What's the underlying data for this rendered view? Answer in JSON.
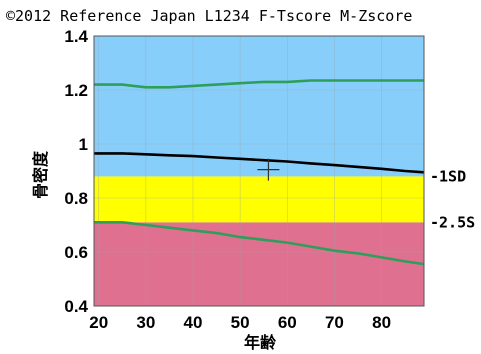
{
  "chart_data": {
    "type": "line",
    "title": "©2012 Reference Japan L1234 F-Tscore M-Zscore",
    "xlabel": "年齢",
    "ylabel": "骨密度",
    "xlim": [
      19,
      89
    ],
    "ylim": [
      0.4,
      1.4
    ],
    "x_ticks": [
      "20",
      "30",
      "40",
      "50",
      "60",
      "70",
      "80"
    ],
    "y_ticks": [
      "0.4",
      "0.6",
      "0.8",
      "1",
      "1.2",
      "1.4"
    ],
    "grid": true,
    "bands": [
      {
        "y0": 0.4,
        "y1": 0.71,
        "color": "#e0708f"
      },
      {
        "y0": 0.71,
        "y1": 0.88,
        "color": "#ffff00"
      },
      {
        "y0": 0.88,
        "y1": 1.4,
        "color": "#87cefa"
      }
    ],
    "series": [
      {
        "color": "#2e9e5b",
        "x": [
          19,
          25,
          30,
          35,
          40,
          45,
          50,
          55,
          60,
          65,
          70,
          75,
          80,
          85,
          89
        ],
        "y": [
          1.22,
          1.22,
          1.21,
          1.21,
          1.215,
          1.22,
          1.225,
          1.23,
          1.23,
          1.235,
          1.235,
          1.235,
          1.235,
          1.235,
          1.235
        ]
      },
      {
        "color": "#000000",
        "x": [
          19,
          25,
          30,
          35,
          40,
          45,
          50,
          55,
          60,
          65,
          70,
          75,
          80,
          85,
          89
        ],
        "y": [
          0.965,
          0.965,
          0.962,
          0.958,
          0.955,
          0.95,
          0.945,
          0.94,
          0.935,
          0.928,
          0.922,
          0.915,
          0.908,
          0.9,
          0.895
        ]
      },
      {
        "color": "#2e9e5b",
        "x": [
          19,
          25,
          30,
          35,
          40,
          45,
          50,
          55,
          60,
          65,
          70,
          75,
          80,
          85,
          89
        ],
        "y": [
          0.71,
          0.71,
          0.7,
          0.69,
          0.68,
          0.67,
          0.655,
          0.645,
          0.635,
          0.62,
          0.605,
          0.595,
          0.58,
          0.565,
          0.555
        ]
      }
    ],
    "marker": {
      "x": 56,
      "y": 0.905,
      "color": "#333333"
    },
    "side_labels": [
      {
        "text": "-1SD",
        "y": 0.88
      },
      {
        "text": "-2.5S",
        "y": 0.71
      }
    ]
  }
}
